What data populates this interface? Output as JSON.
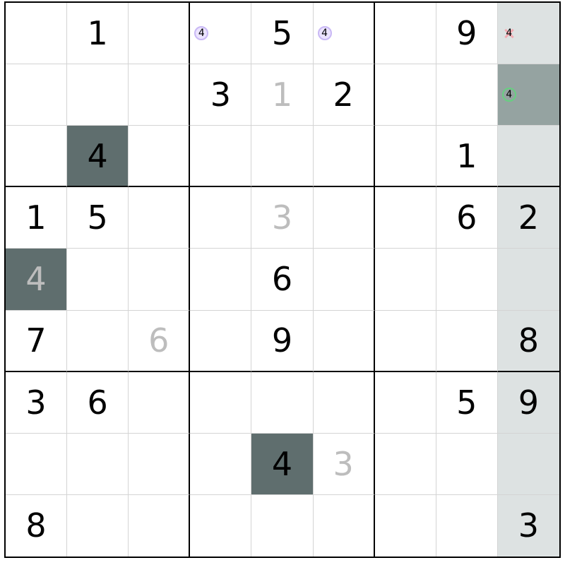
{
  "colors": {
    "column_highlight": "#dde2e2",
    "selected_cell": "#95a3a1",
    "same_number": "#5f6e6e",
    "user_digit": "#bdbdbd",
    "given_digit": "#000000"
  },
  "selected": {
    "row": 1,
    "col": 8
  },
  "cells": [
    [
      {
        "v": ""
      },
      {
        "v": "1"
      },
      {
        "v": ""
      },
      {
        "pm": "4",
        "pm_style": "purple"
      },
      {
        "v": "5"
      },
      {
        "pm": "4",
        "pm_style": "purple"
      },
      {
        "v": ""
      },
      {
        "v": "9"
      },
      {
        "pm": "4",
        "pm_style": "cross"
      }
    ],
    [
      {
        "v": ""
      },
      {
        "v": ""
      },
      {
        "v": ""
      },
      {
        "v": "3"
      },
      {
        "v": "1",
        "user": true
      },
      {
        "v": "2"
      },
      {
        "v": ""
      },
      {
        "v": ""
      },
      {
        "pm": "4",
        "pm_style": "green"
      }
    ],
    [
      {
        "v": ""
      },
      {
        "v": "4",
        "hl": true
      },
      {
        "v": ""
      },
      {
        "v": ""
      },
      {
        "v": ""
      },
      {
        "v": ""
      },
      {
        "v": ""
      },
      {
        "v": "1"
      },
      {
        "v": ""
      }
    ],
    [
      {
        "v": "1"
      },
      {
        "v": "5"
      },
      {
        "v": ""
      },
      {
        "v": ""
      },
      {
        "v": "3",
        "user": true
      },
      {
        "v": ""
      },
      {
        "v": ""
      },
      {
        "v": "6"
      },
      {
        "v": "2"
      }
    ],
    [
      {
        "v": "4",
        "user": true,
        "hl": true
      },
      {
        "v": ""
      },
      {
        "v": ""
      },
      {
        "v": ""
      },
      {
        "v": "6"
      },
      {
        "v": ""
      },
      {
        "v": ""
      },
      {
        "v": ""
      },
      {
        "v": ""
      }
    ],
    [
      {
        "v": "7"
      },
      {
        "v": ""
      },
      {
        "v": "6",
        "user": true
      },
      {
        "v": ""
      },
      {
        "v": "9"
      },
      {
        "v": ""
      },
      {
        "v": ""
      },
      {
        "v": ""
      },
      {
        "v": "8"
      }
    ],
    [
      {
        "v": "3"
      },
      {
        "v": "6"
      },
      {
        "v": ""
      },
      {
        "v": ""
      },
      {
        "v": ""
      },
      {
        "v": ""
      },
      {
        "v": ""
      },
      {
        "v": "5"
      },
      {
        "v": "9"
      }
    ],
    [
      {
        "v": ""
      },
      {
        "v": ""
      },
      {
        "v": ""
      },
      {
        "v": ""
      },
      {
        "v": "4",
        "hl": true
      },
      {
        "v": "3",
        "user": true
      },
      {
        "v": ""
      },
      {
        "v": ""
      },
      {
        "v": ""
      }
    ],
    [
      {
        "v": "8"
      },
      {
        "v": ""
      },
      {
        "v": ""
      },
      {
        "v": ""
      },
      {
        "v": ""
      },
      {
        "v": ""
      },
      {
        "v": ""
      },
      {
        "v": ""
      },
      {
        "v": "3"
      }
    ]
  ]
}
